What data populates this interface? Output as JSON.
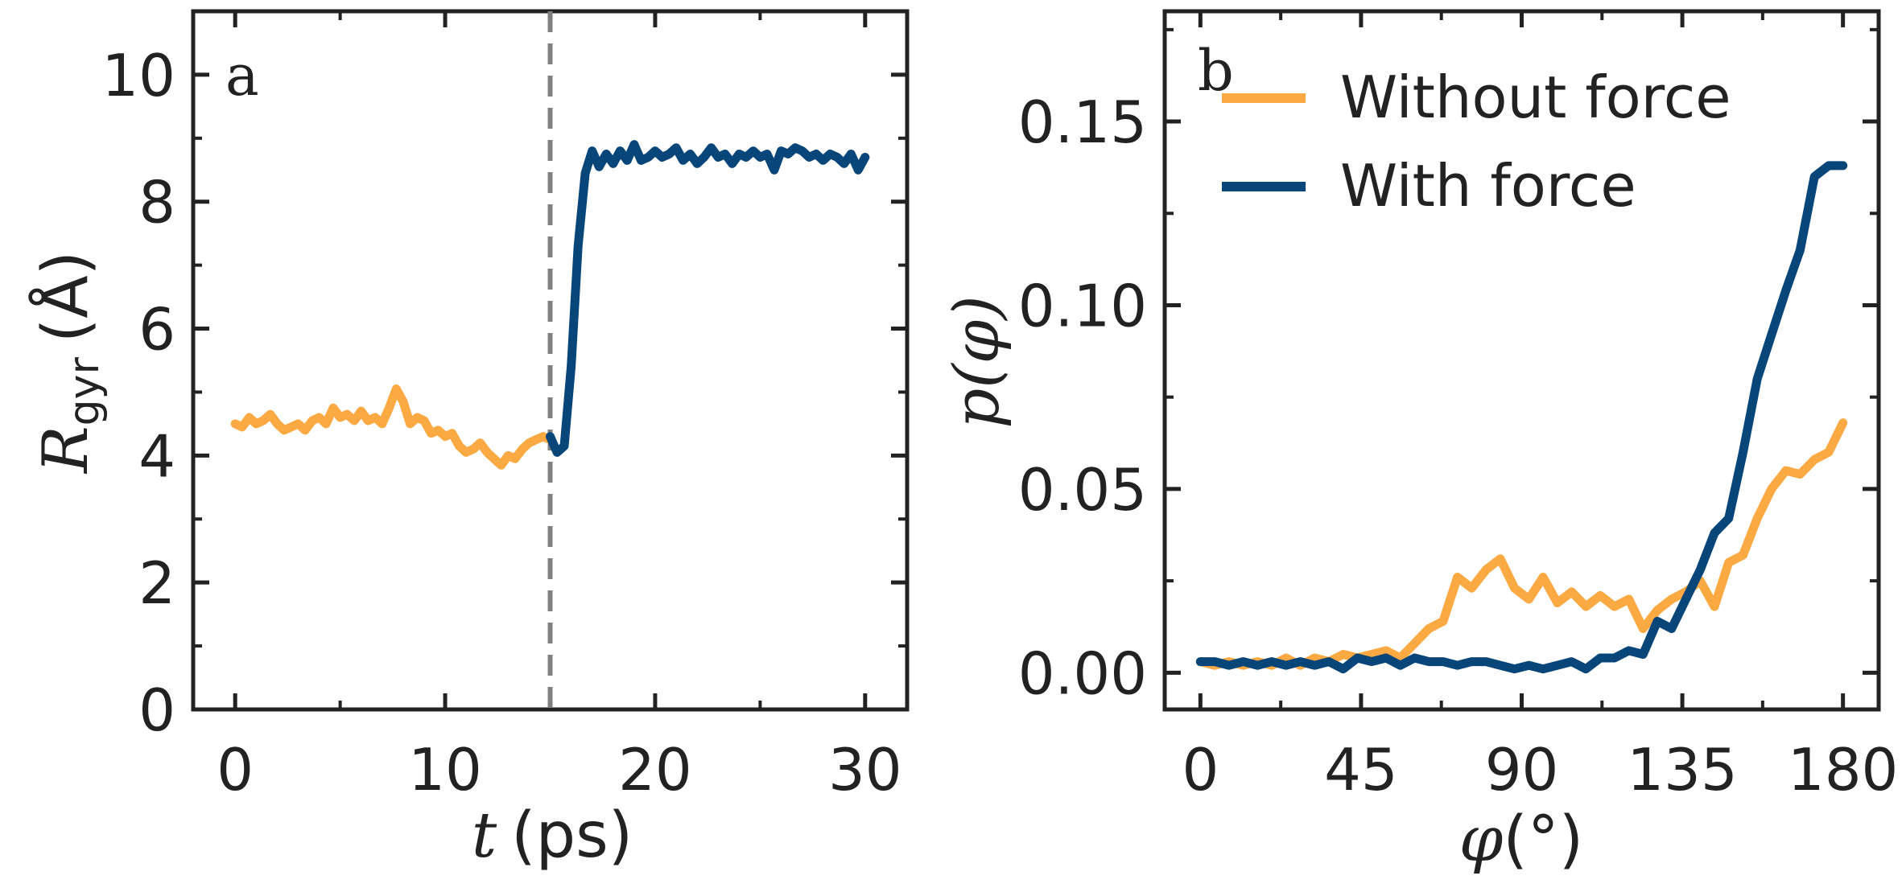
{
  "colors": {
    "without_force": "#FBA942",
    "with_force": "#08467A",
    "dashed_line": "#808080",
    "axis": "#222222"
  },
  "chart_data": [
    {
      "type": "line",
      "panel_label": "a",
      "xlabel_var": "t",
      "xlabel_unit": "(ps)",
      "ylabel_var": "R",
      "ylabel_sub": "gyr",
      "ylabel_unit": "(Å)",
      "xlim": [
        -2,
        32
      ],
      "ylim": [
        0,
        11
      ],
      "xticks": [
        0,
        10,
        20,
        30
      ],
      "yticks": [
        0,
        2,
        4,
        6,
        8,
        10
      ],
      "xtick_labels": [
        "0",
        "10",
        "20",
        "30"
      ],
      "ytick_labels": [
        "0",
        "2",
        "4",
        "6",
        "8",
        "10"
      ],
      "vline_x": 15,
      "series": [
        {
          "name": "Without force",
          "color": "#FBA942",
          "x": [
            0,
            0.33,
            0.67,
            1,
            1.33,
            1.67,
            2,
            2.33,
            2.67,
            3,
            3.33,
            3.67,
            4,
            4.33,
            4.67,
            5,
            5.33,
            5.67,
            6,
            6.33,
            6.67,
            7,
            7.33,
            7.67,
            8,
            8.33,
            8.67,
            9,
            9.33,
            9.67,
            10,
            10.33,
            10.67,
            11,
            11.33,
            11.67,
            12,
            12.33,
            12.67,
            13,
            13.33,
            13.67,
            14,
            14.33,
            14.67,
            15
          ],
          "y": [
            4.5,
            4.45,
            4.6,
            4.5,
            4.55,
            4.65,
            4.5,
            4.4,
            4.45,
            4.5,
            4.4,
            4.55,
            4.6,
            4.5,
            4.75,
            4.6,
            4.65,
            4.55,
            4.7,
            4.55,
            4.6,
            4.5,
            4.75,
            5.05,
            4.85,
            4.5,
            4.6,
            4.55,
            4.35,
            4.4,
            4.3,
            4.35,
            4.15,
            4.05,
            4.1,
            4.2,
            4.05,
            3.95,
            3.85,
            4.0,
            3.95,
            4.1,
            4.2,
            4.25,
            4.3,
            4.25
          ]
        },
        {
          "name": "With force",
          "color": "#08467A",
          "x": [
            15,
            15.33,
            15.67,
            16,
            16.33,
            16.67,
            17,
            17.33,
            17.67,
            18,
            18.33,
            18.67,
            19,
            19.33,
            19.67,
            20,
            20.33,
            20.67,
            21,
            21.33,
            21.67,
            22,
            22.33,
            22.67,
            23,
            23.33,
            23.67,
            24,
            24.33,
            24.67,
            25,
            25.33,
            25.67,
            26,
            26.33,
            26.67,
            27,
            27.33,
            27.67,
            28,
            28.33,
            28.67,
            29,
            29.33,
            29.67,
            30
          ],
          "y": [
            4.3,
            4.05,
            4.15,
            5.4,
            7.3,
            8.45,
            8.8,
            8.55,
            8.75,
            8.6,
            8.8,
            8.65,
            8.9,
            8.65,
            8.7,
            8.8,
            8.7,
            8.75,
            8.85,
            8.65,
            8.75,
            8.6,
            8.7,
            8.85,
            8.7,
            8.75,
            8.6,
            8.75,
            8.7,
            8.8,
            8.7,
            8.75,
            8.5,
            8.8,
            8.75,
            8.85,
            8.8,
            8.7,
            8.75,
            8.65,
            8.75,
            8.7,
            8.6,
            8.75,
            8.5,
            8.7
          ]
        }
      ]
    },
    {
      "type": "line",
      "panel_label": "b",
      "xlabel_var": "φ",
      "xlabel_unit": "(°)",
      "ylabel": "p(φ)",
      "xlim": [
        -10,
        190
      ],
      "ylim": [
        -0.01,
        0.18
      ],
      "xticks": [
        0,
        45,
        90,
        135,
        180
      ],
      "yticks": [
        0.0,
        0.05,
        0.1,
        0.15
      ],
      "xtick_labels": [
        "0",
        "45",
        "90",
        "135",
        "180"
      ],
      "ytick_labels": [
        "0.00",
        "0.05",
        "0.10",
        "0.15"
      ],
      "legend_position": "top-right",
      "series": [
        {
          "name": "Without force",
          "color": "#FBA942",
          "x": [
            0,
            4,
            8,
            12,
            16,
            20,
            24,
            28,
            32,
            36,
            40,
            44,
            48,
            52,
            56,
            60,
            64,
            68,
            72,
            76,
            80,
            84,
            88,
            92,
            96,
            100,
            104,
            108,
            112,
            116,
            120,
            124,
            128,
            132,
            136,
            140,
            144,
            148,
            152,
            156,
            160,
            164,
            168,
            172,
            176,
            180
          ],
          "y": [
            0.003,
            0.002,
            0.003,
            0.002,
            0.003,
            0.002,
            0.004,
            0.002,
            0.004,
            0.003,
            0.005,
            0.004,
            0.005,
            0.006,
            0.004,
            0.008,
            0.012,
            0.014,
            0.026,
            0.023,
            0.028,
            0.031,
            0.023,
            0.02,
            0.026,
            0.019,
            0.022,
            0.018,
            0.021,
            0.018,
            0.02,
            0.012,
            0.017,
            0.02,
            0.022,
            0.025,
            0.018,
            0.03,
            0.032,
            0.042,
            0.05,
            0.055,
            0.054,
            0.058,
            0.06,
            0.068
          ]
        },
        {
          "name": "With force",
          "color": "#08467A",
          "x": [
            0,
            4,
            8,
            12,
            16,
            20,
            24,
            28,
            32,
            36,
            40,
            44,
            48,
            52,
            56,
            60,
            64,
            68,
            72,
            76,
            80,
            84,
            88,
            92,
            96,
            100,
            104,
            108,
            112,
            116,
            120,
            124,
            128,
            132,
            136,
            140,
            144,
            148,
            152,
            156,
            160,
            164,
            168,
            172,
            176,
            180
          ],
          "y": [
            0.003,
            0.003,
            0.002,
            0.003,
            0.002,
            0.003,
            0.002,
            0.003,
            0.002,
            0.003,
            0.001,
            0.004,
            0.003,
            0.004,
            0.002,
            0.004,
            0.003,
            0.003,
            0.002,
            0.003,
            0.003,
            0.002,
            0.001,
            0.002,
            0.001,
            0.002,
            0.003,
            0.001,
            0.004,
            0.004,
            0.006,
            0.005,
            0.014,
            0.012,
            0.02,
            0.028,
            0.038,
            0.042,
            0.06,
            0.08,
            0.092,
            0.104,
            0.115,
            0.135,
            0.138,
            0.138
          ]
        }
      ]
    }
  ]
}
